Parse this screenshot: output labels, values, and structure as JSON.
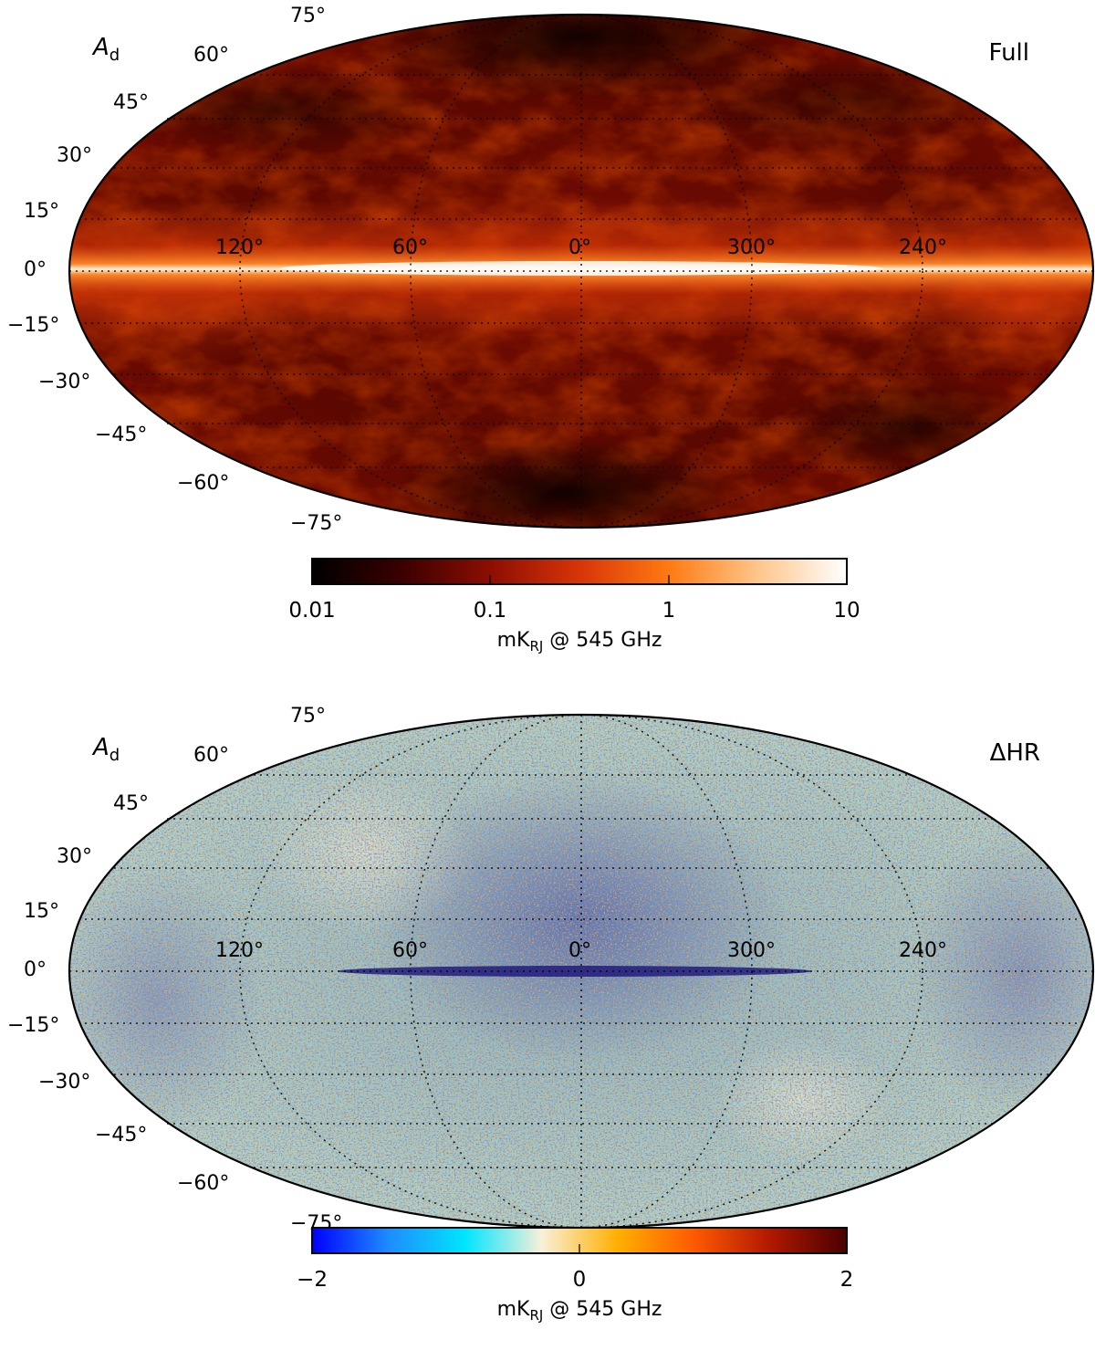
{
  "panels": [
    {
      "id": "full",
      "component_label": "A",
      "component_subscript": "d",
      "panel_tag": "Full",
      "lat_labels": [
        "75°",
        "60°",
        "45°",
        "30°",
        "15°",
        "0°",
        "−15°",
        "−30°",
        "−45°",
        "−60°",
        "−75°"
      ],
      "lon_labels": [
        "120°",
        "60°",
        "0°",
        "300°",
        "240°"
      ],
      "colorbar": {
        "scale": "log",
        "range": [
          0.01,
          10
        ],
        "tick_labels": [
          "0.01",
          "0.1",
          "1",
          "10"
        ],
        "unit_main": "mK",
        "unit_sub": "RJ",
        "unit_rest": " @ 545 GHz",
        "colors": [
          "#000000",
          "#3a0000",
          "#8c0e02",
          "#d83408",
          "#ff7a12",
          "#ffc58a",
          "#ffffff"
        ]
      }
    },
    {
      "id": "diff",
      "component_label": "A",
      "component_subscript": "d",
      "panel_tag": "ΔHR",
      "lat_labels": [
        "75°",
        "60°",
        "45°",
        "30°",
        "15°",
        "0°",
        "−15°",
        "−30°",
        "−45°",
        "−60°",
        "−75°"
      ],
      "lon_labels": [
        "120°",
        "60°",
        "0°",
        "300°",
        "240°"
      ],
      "colorbar": {
        "scale": "linear",
        "range": [
          -2,
          2
        ],
        "tick_labels": [
          "−2",
          "0",
          "2"
        ],
        "unit_main": "mK",
        "unit_sub": "RJ",
        "unit_rest": " @ 545 GHz",
        "colors": [
          "#0000ff",
          "#1e8cff",
          "#00e5ff",
          "#f8f0d8",
          "#ffb000",
          "#ff5a00",
          "#b01800",
          "#4a0000"
        ]
      }
    }
  ]
}
